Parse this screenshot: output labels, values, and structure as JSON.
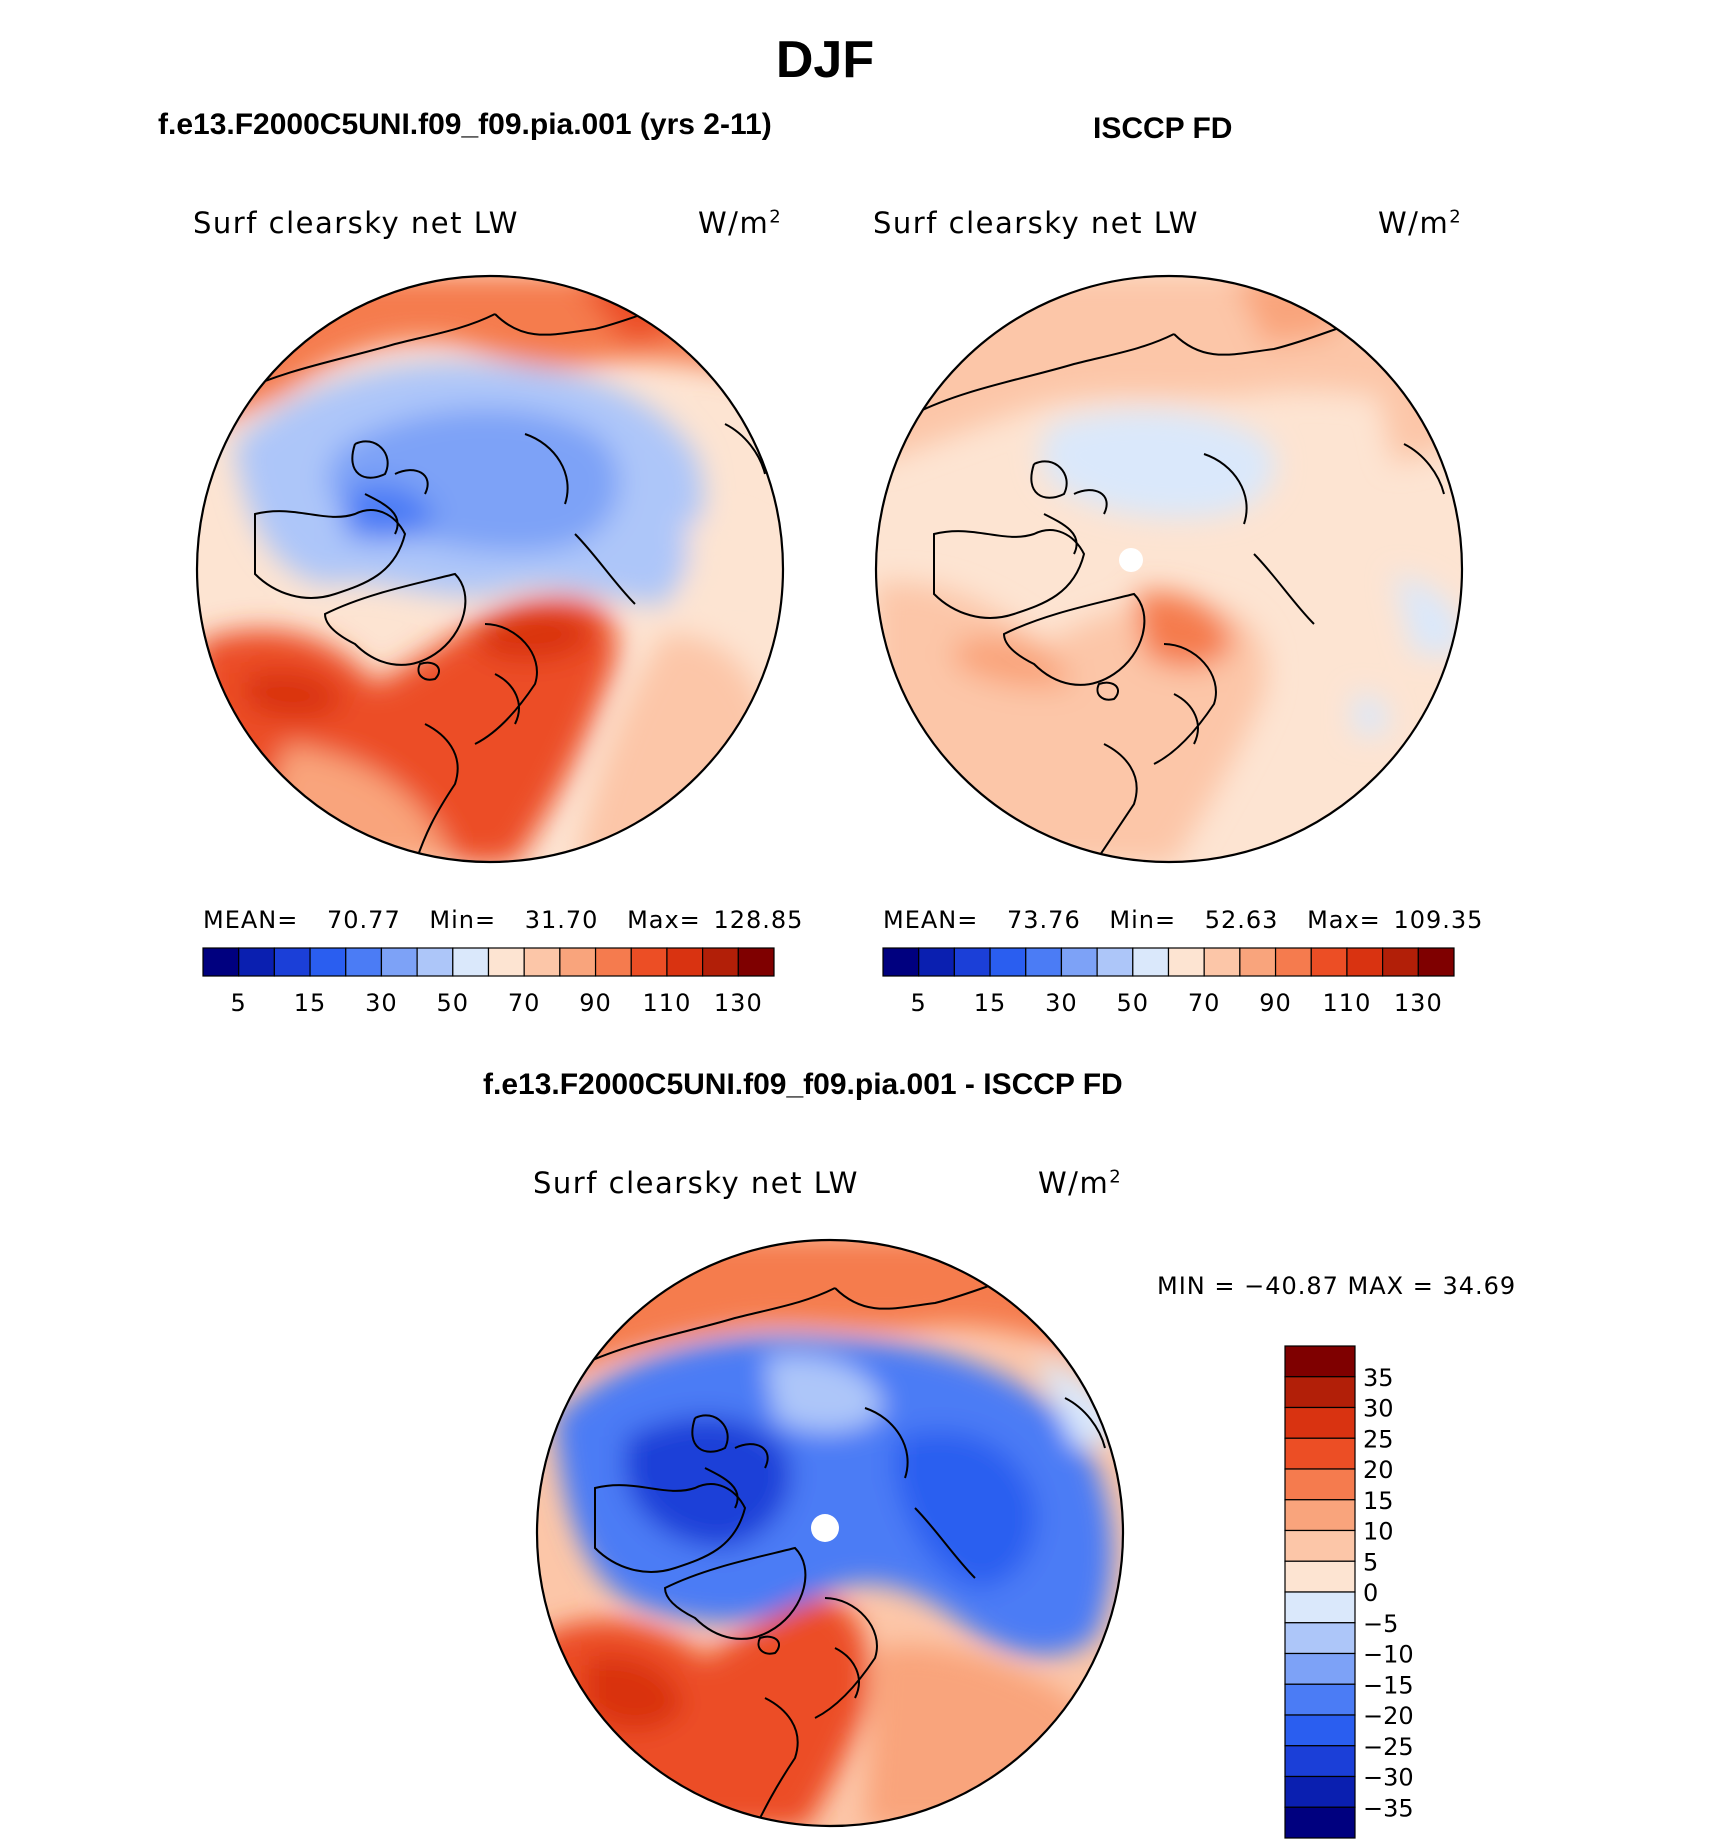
{
  "page": {
    "title": "DJF",
    "diff_title": "f.e13.F2000C5UNI.f09_f09.pia.001 - ISCCP FD"
  },
  "panels": [
    {
      "case_title": "f.e13.F2000C5UNI.f09_f09.pia.001 (yrs 2-11)",
      "variable": "Surf clearsky net LW",
      "units": "W/m",
      "units_exp": "2",
      "mean_label": "MEAN=",
      "mean_value": "70.77",
      "min_label": "Min=",
      "min_value": "31.70",
      "max_label": "Max=",
      "max_value": "128.85"
    },
    {
      "case_title": "ISCCP FD",
      "variable": "Surf clearsky net LW",
      "units": "W/m",
      "units_exp": "2",
      "mean_label": "MEAN=",
      "mean_value": "73.76",
      "min_label": "Min=",
      "min_value": "52.63",
      "max_label": "Max=",
      "max_value": "109.35"
    }
  ],
  "diff_panel": {
    "variable": "Surf clearsky net LW",
    "units": "W/m",
    "units_exp": "2",
    "minmax_text": "MIN = −40.87 MAX =   34.69"
  },
  "chart_data": [
    {
      "type": "heatmap",
      "title": "f.e13.F2000C5UNI.f09_f09.pia.001 (yrs 2-11)",
      "projection": "north polar stereographic",
      "variable": "Surf clearsky net LW",
      "units": "W/m2",
      "stats": {
        "mean": 70.77,
        "min": 31.7,
        "max": 128.85
      },
      "colorbar": {
        "levels": [
          5,
          10,
          15,
          20,
          30,
          40,
          50,
          60,
          70,
          80,
          90,
          100,
          110,
          120,
          130
        ],
        "tick_labels": [
          "5",
          "15",
          "30",
          "50",
          "70",
          "90",
          "110",
          "130"
        ],
        "colors": [
          "#00007f",
          "#0a1fb0",
          "#1b3fd8",
          "#2a5ef0",
          "#4b7cf5",
          "#7da2f7",
          "#adc6f9",
          "#dae8fb",
          "#fde4d2",
          "#fcc6a8",
          "#f9a47c",
          "#f57b4e",
          "#ec4e25",
          "#d93311",
          "#b21f08",
          "#7f0000"
        ]
      }
    },
    {
      "type": "heatmap",
      "title": "ISCCP FD",
      "projection": "north polar stereographic",
      "variable": "Surf clearsky net LW",
      "units": "W/m2",
      "stats": {
        "mean": 73.76,
        "min": 52.63,
        "max": 109.35
      },
      "colorbar": {
        "levels": [
          5,
          10,
          15,
          20,
          30,
          40,
          50,
          60,
          70,
          80,
          90,
          100,
          110,
          120,
          130
        ],
        "tick_labels": [
          "5",
          "15",
          "30",
          "50",
          "70",
          "90",
          "110",
          "130"
        ],
        "colors": [
          "#00007f",
          "#0a1fb0",
          "#1b3fd8",
          "#2a5ef0",
          "#4b7cf5",
          "#7da2f7",
          "#adc6f9",
          "#dae8fb",
          "#fde4d2",
          "#fcc6a8",
          "#f9a47c",
          "#f57b4e",
          "#ec4e25",
          "#d93311",
          "#b21f08",
          "#7f0000"
        ]
      }
    },
    {
      "type": "heatmap",
      "title": "f.e13.F2000C5UNI.f09_f09.pia.001 - ISCCP FD",
      "projection": "north polar stereographic",
      "variable": "Surf clearsky net LW",
      "units": "W/m2",
      "stats": {
        "min": -40.87,
        "max": 34.69
      },
      "colorbar": {
        "levels": [
          35,
          30,
          25,
          20,
          15,
          10,
          5,
          0,
          -5,
          -10,
          -15,
          -20,
          -25,
          -30,
          -35
        ],
        "tick_labels": [
          "35",
          "30",
          "25",
          "20",
          "15",
          "10",
          "5",
          "0",
          "−5",
          "−10",
          "−15",
          "−20",
          "−25",
          "−30",
          "−35"
        ],
        "colors": [
          "#7f0000",
          "#b21f08",
          "#d93311",
          "#ec4e25",
          "#f57b4e",
          "#f9a47c",
          "#fcc6a8",
          "#fde4d2",
          "#dae8fb",
          "#adc6f9",
          "#7da2f7",
          "#4b7cf5",
          "#2a5ef0",
          "#1b3fd8",
          "#0a1fb0",
          "#00007f"
        ]
      }
    }
  ]
}
